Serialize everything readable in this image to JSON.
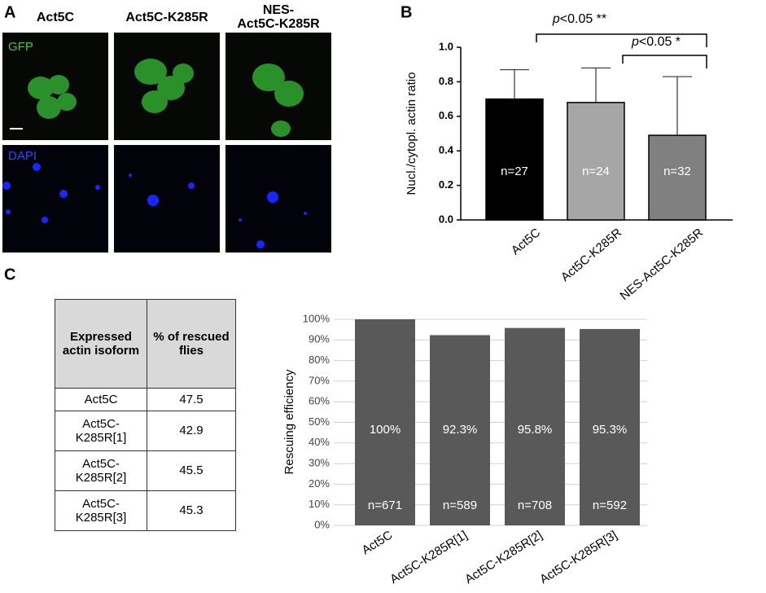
{
  "panel_labels": [
    "A",
    "B",
    "C"
  ],
  "panel_a": {
    "columns": [
      "Act5C",
      "Act5C-K285R",
      "NES-",
      "Act5C-K285R"
    ],
    "rows": [
      "GFP",
      "DAPI"
    ]
  },
  "chart_data": [
    {
      "type": "bar",
      "ylabel": "Nucl./cytopl. actin ratio",
      "categories": [
        "Act5C",
        "Act5C-K285R",
        "NES-Act5C-K285R"
      ],
      "values": [
        0.7,
        0.68,
        0.49
      ],
      "errors": [
        0.17,
        0.2,
        0.34
      ],
      "colors": [
        "#000000",
        "#a6a6a6",
        "#808080"
      ],
      "ylim": [
        0,
        1.0
      ],
      "yticks": [
        {
          "value": 0,
          "label": "0.0"
        },
        {
          "value": 0.2,
          "label": "0.2"
        },
        {
          "value": 0.4,
          "label": "0.4"
        },
        {
          "value": 0.6,
          "label": "0.6"
        },
        {
          "value": 0.8,
          "label": "0.8"
        },
        {
          "value": 1.0,
          "label": "1.0"
        }
      ],
      "annotations": [
        "n=27",
        "n=24",
        "n=32"
      ],
      "significance": [
        {
          "italic": "p",
          "text": "<0.05 **"
        },
        {
          "italic": "p",
          "text": "<0.05 *"
        }
      ]
    },
    {
      "type": "bar",
      "ylabel": "Rescuing efficiency",
      "categories": [
        "Act5C",
        "Act5C-K285R[1]",
        "Act5C-K285R[2]",
        "Act5C-K285R[3]"
      ],
      "values": [
        100,
        92.3,
        95.8,
        95.3
      ],
      "value_labels": [
        "100%",
        "92.3%",
        "95.8%",
        "95.3%"
      ],
      "color": "#595959",
      "ylim": [
        0,
        100
      ],
      "yticks": [
        {
          "value": 0,
          "label": "0%"
        },
        {
          "value": 10,
          "label": "10%"
        },
        {
          "value": 20,
          "label": "20%"
        },
        {
          "value": 30,
          "label": "30%"
        },
        {
          "value": 40,
          "label": "40%"
        },
        {
          "value": 50,
          "label": "50%"
        },
        {
          "value": 60,
          "label": "60%"
        },
        {
          "value": 70,
          "label": "70%"
        },
        {
          "value": 80,
          "label": "80%"
        },
        {
          "value": 90,
          "label": "90%"
        },
        {
          "value": 100,
          "label": "100%"
        }
      ],
      "grid": true,
      "annotations": [
        "n=671",
        "n=589",
        "n=708",
        "n=592"
      ]
    }
  ],
  "table": {
    "header": [
      "Expressed actin isoform",
      "% of rescued flies"
    ],
    "rows": [
      [
        "Act5C",
        47.5
      ],
      [
        "Act5C-K285R[1]",
        42.9
      ],
      [
        "Act5C-K285R[2]",
        45.5
      ],
      [
        "Act5C-K285R[3]",
        45.3
      ]
    ]
  }
}
